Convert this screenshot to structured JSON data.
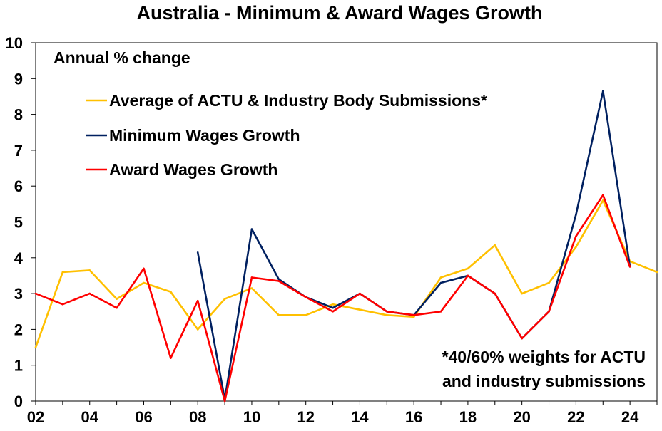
{
  "chart_data": {
    "type": "line",
    "title": "Australia - Minimum & Award Wages Growth",
    "subtitle": "Annual % change",
    "note_lines": [
      "*40/60% weights for ACTU",
      "and industry submissions"
    ],
    "xlim": [
      2002,
      2025
    ],
    "ylim": [
      0,
      10
    ],
    "x_ticks": [
      {
        "value": 2002,
        "label": "02"
      },
      {
        "value": 2004,
        "label": "04"
      },
      {
        "value": 2006,
        "label": "06"
      },
      {
        "value": 2008,
        "label": "08"
      },
      {
        "value": 2010,
        "label": "10"
      },
      {
        "value": 2012,
        "label": "12"
      },
      {
        "value": 2014,
        "label": "14"
      },
      {
        "value": 2016,
        "label": "16"
      },
      {
        "value": 2018,
        "label": "18"
      },
      {
        "value": 2020,
        "label": "20"
      },
      {
        "value": 2022,
        "label": "22"
      },
      {
        "value": 2024,
        "label": "24"
      }
    ],
    "y_ticks": [
      0,
      1,
      2,
      3,
      4,
      5,
      6,
      7,
      8,
      9,
      10
    ],
    "grid": false,
    "legend_position": "top-left",
    "series": [
      {
        "name": "Average of ACTU & Industry Body Submissions*",
        "color": "#FFC000",
        "points": [
          [
            2002,
            1.5
          ],
          [
            2003,
            3.6
          ],
          [
            2004,
            3.65
          ],
          [
            2005,
            2.85
          ],
          [
            2006,
            3.3
          ],
          [
            2007,
            3.05
          ],
          [
            2008,
            2.0
          ],
          [
            2009,
            2.85
          ],
          [
            2010,
            3.15
          ],
          [
            2011,
            2.4
          ],
          [
            2012,
            2.4
          ],
          [
            2013,
            2.7
          ],
          [
            2014,
            2.55
          ],
          [
            2015,
            2.4
          ],
          [
            2016,
            2.35
          ],
          [
            2017,
            3.45
          ],
          [
            2018,
            3.7
          ],
          [
            2019,
            4.35
          ],
          [
            2020,
            3.0
          ],
          [
            2021,
            3.3
          ],
          [
            2022,
            4.3
          ],
          [
            2023,
            5.6
          ],
          [
            2024,
            3.9
          ],
          [
            2025,
            3.6
          ]
        ]
      },
      {
        "name": "Minimum Wages Growth",
        "color": "#002060",
        "points": [
          [
            2008,
            4.15
          ],
          [
            2009,
            0.05
          ],
          [
            2010,
            4.8
          ],
          [
            2011,
            3.4
          ],
          [
            2012,
            2.9
          ],
          [
            2013,
            2.6
          ],
          [
            2014,
            3.0
          ],
          [
            2015,
            2.5
          ],
          [
            2016,
            2.4
          ],
          [
            2017,
            3.3
          ],
          [
            2018,
            3.5
          ],
          [
            2019,
            3.0
          ],
          [
            2020,
            1.75
          ],
          [
            2021,
            2.5
          ],
          [
            2022,
            5.2
          ],
          [
            2023,
            8.65
          ],
          [
            2024,
            3.75
          ]
        ]
      },
      {
        "name": "Award Wages Growth",
        "color": "#FF0000",
        "points": [
          [
            2002,
            3.0
          ],
          [
            2003,
            2.7
          ],
          [
            2004,
            3.0
          ],
          [
            2005,
            2.6
          ],
          [
            2006,
            3.7
          ],
          [
            2007,
            1.2
          ],
          [
            2008,
            2.8
          ],
          [
            2009,
            0.0
          ],
          [
            2010,
            3.45
          ],
          [
            2011,
            3.35
          ],
          [
            2012,
            2.9
          ],
          [
            2013,
            2.5
          ],
          [
            2014,
            3.0
          ],
          [
            2015,
            2.5
          ],
          [
            2016,
            2.4
          ],
          [
            2017,
            2.5
          ],
          [
            2018,
            3.5
          ],
          [
            2019,
            3.0
          ],
          [
            2020,
            1.75
          ],
          [
            2021,
            2.5
          ],
          [
            2022,
            4.6
          ],
          [
            2023,
            5.75
          ],
          [
            2024,
            3.75
          ]
        ]
      }
    ]
  }
}
